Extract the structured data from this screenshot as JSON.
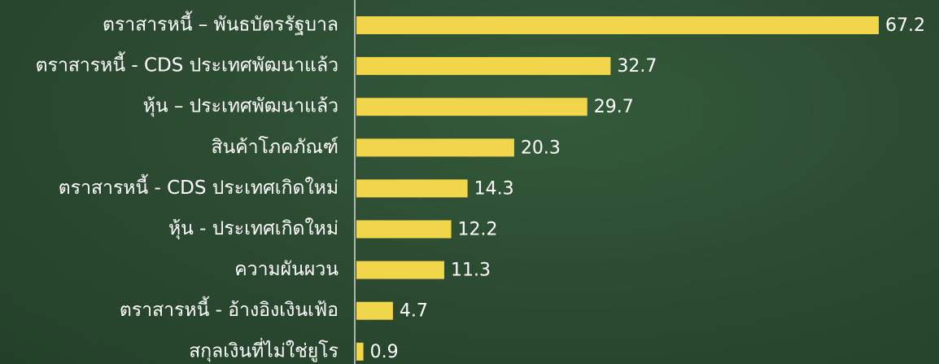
{
  "chart_data": {
    "type": "bar",
    "orientation": "horizontal",
    "categories": [
      "ตราสารหนี้ – พันธบัตรรัฐบาล",
      "ตราสารหนี้ - CDS ประเทศพัฒนาแล้ว",
      "หุ้น – ประเทศพัฒนาแล้ว",
      "สินค้าโภคภัณฑ์",
      "ตราสารหนี้ - CDS ประเทศเกิดใหม่",
      "หุ้น - ประเทศเกิดใหม่",
      "ความผันผวน",
      "ตราสารหนี้ - อ้างอิงเงินเฟ้อ",
      "สกุลเงินที่ไม่ใช่ยูโร"
    ],
    "values": [
      67.2,
      32.7,
      29.7,
      20.3,
      14.3,
      12.2,
      11.3,
      4.7,
      0.9
    ],
    "color": "#f1d54b"
  }
}
